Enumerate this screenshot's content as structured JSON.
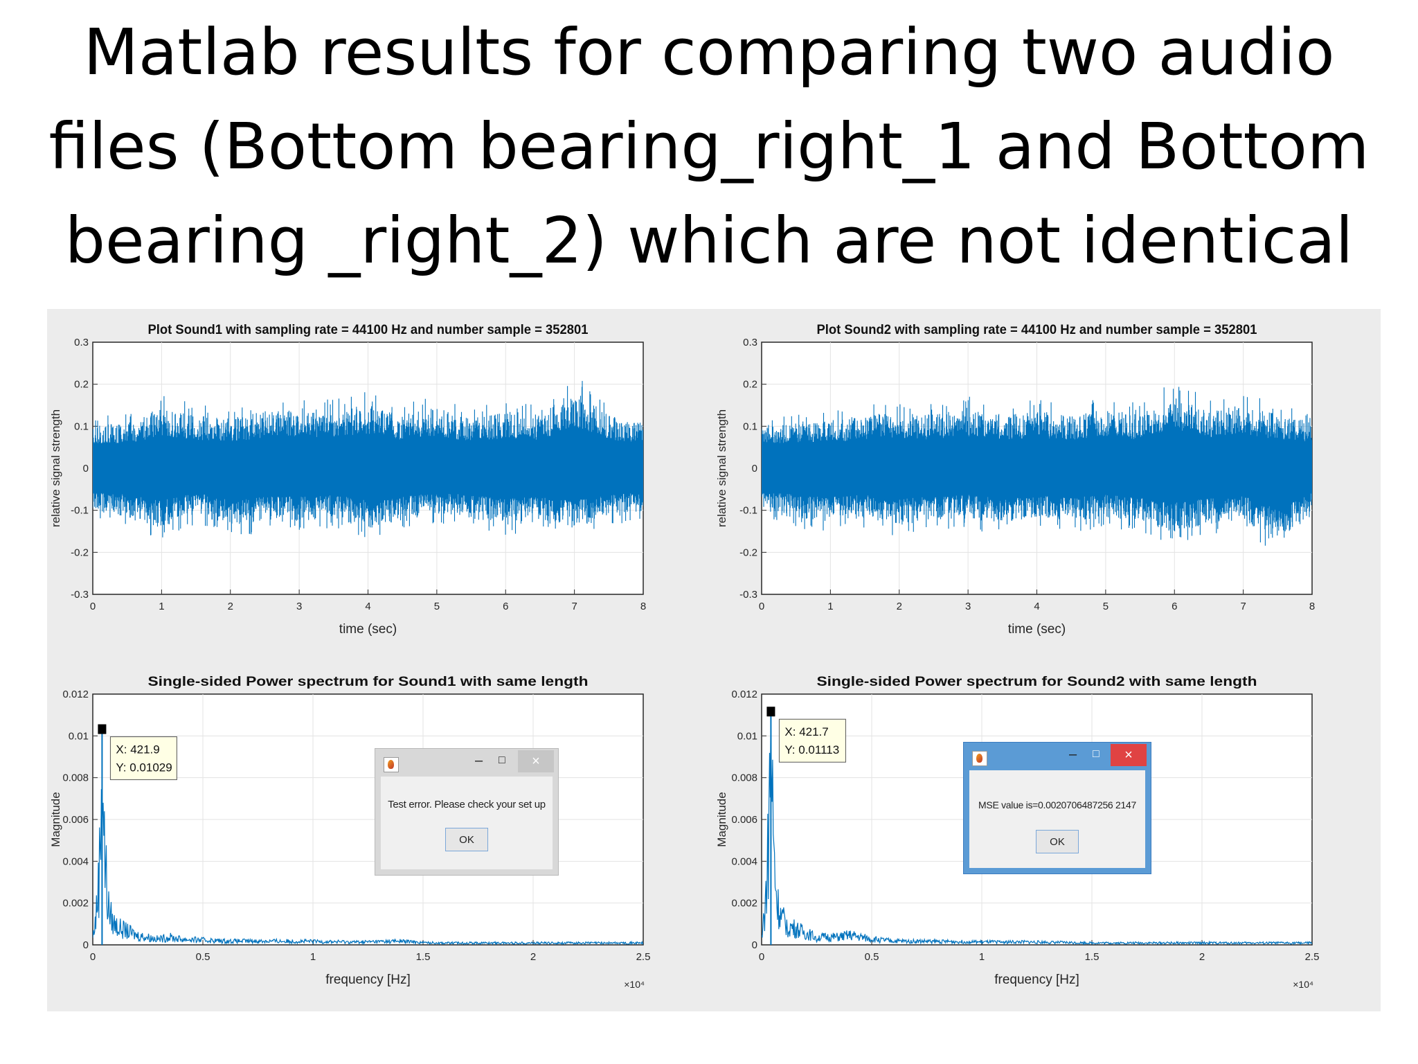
{
  "slide": {
    "title_lines": [
      "Matlab results for comparing two audio",
      "files (Bottom bearing_right_1 and Bottom",
      "bearing _right_2) which are not identical"
    ]
  },
  "chart_data": [
    {
      "id": "time1",
      "type": "line",
      "title": "Plot Sound1 with sampling rate = 44100 Hz and number sample = 352801",
      "xlabel": "time (sec)",
      "ylabel": "relative signal strength",
      "xlim": [
        0,
        8
      ],
      "ylim": [
        -0.3,
        0.3
      ],
      "xticks": [
        "0",
        "1",
        "2",
        "3",
        "4",
        "5",
        "6",
        "7",
        "8"
      ],
      "yticks": [
        "0.3",
        "0.2",
        "0.1",
        "0",
        "-0.1",
        "-0.2",
        "-0.3"
      ],
      "grid": true,
      "color": "#0072bd",
      "envelope_x": [
        0,
        0.5,
        1,
        1.5,
        2,
        2.5,
        3,
        3.5,
        4,
        4.5,
        5,
        5.5,
        6,
        6.5,
        7,
        7.5,
        8
      ],
      "envelope_y": [
        0.12,
        0.13,
        0.17,
        0.15,
        0.14,
        0.16,
        0.17,
        0.16,
        0.18,
        0.15,
        0.17,
        0.14,
        0.16,
        0.15,
        0.22,
        0.15,
        0.13
      ],
      "envelope_neg": [
        -0.12,
        -0.14,
        -0.17,
        -0.13,
        -0.16,
        -0.15,
        -0.15,
        -0.14,
        -0.17,
        -0.15,
        -0.13,
        -0.14,
        -0.16,
        -0.15,
        -0.17,
        -0.14,
        -0.12
      ]
    },
    {
      "id": "time2",
      "type": "line",
      "title": "Plot Sound2 with sampling rate = 44100 Hz and number sample = 352801",
      "xlabel": "time (sec)",
      "ylabel": "relative signal strength",
      "xlim": [
        0,
        8
      ],
      "ylim": [
        -0.3,
        0.3
      ],
      "xticks": [
        "0",
        "1",
        "2",
        "3",
        "4",
        "5",
        "6",
        "7",
        "8"
      ],
      "yticks": [
        "0.3",
        "0.2",
        "0.1",
        "0",
        "-0.1",
        "-0.2",
        "-0.3"
      ],
      "grid": true,
      "color": "#0072bd",
      "envelope_x": [
        0,
        0.5,
        1,
        1.5,
        2,
        2.5,
        3,
        3.5,
        4,
        4.5,
        5,
        5.5,
        6,
        6.5,
        7,
        7.5,
        8
      ],
      "envelope_y": [
        0.12,
        0.13,
        0.14,
        0.15,
        0.16,
        0.15,
        0.17,
        0.15,
        0.16,
        0.15,
        0.17,
        0.15,
        0.21,
        0.16,
        0.18,
        0.15,
        0.13
      ],
      "envelope_neg": [
        -0.12,
        -0.14,
        -0.15,
        -0.14,
        -0.16,
        -0.15,
        -0.14,
        -0.16,
        -0.14,
        -0.15,
        -0.14,
        -0.15,
        -0.18,
        -0.16,
        -0.14,
        -0.22,
        -0.13
      ]
    },
    {
      "id": "spec1",
      "type": "line",
      "title": "Single-sided Power spectrum for Sound1 with same length",
      "xlabel": "frequency [Hz]",
      "ylabel": "Magnitude",
      "xlim": [
        0,
        25000
      ],
      "ylim": [
        0,
        0.012
      ],
      "xticks": [
        "0",
        "0.5",
        "1",
        "1.5",
        "2",
        "2.5"
      ],
      "yticks": [
        "0.012",
        "0.01",
        "0.008",
        "0.006",
        "0.004",
        "0.002",
        "0"
      ],
      "x_exponent": "×10⁴",
      "grid": true,
      "color": "#0072bd",
      "x": [
        0,
        150,
        300,
        421.9,
        550,
        700,
        900,
        1200,
        1600,
        2000,
        2500,
        3000,
        3500,
        4000,
        5000,
        6000,
        8000,
        10000,
        12000,
        14000,
        15000,
        16000,
        18000,
        20000,
        22000,
        25000
      ],
      "y": [
        0.0004,
        0.0015,
        0.004,
        0.01029,
        0.0045,
        0.002,
        0.0012,
        0.0009,
        0.0007,
        0.0005,
        0.0004,
        0.0003,
        0.0004,
        0.0003,
        0.00025,
        0.0002,
        0.0002,
        0.00018,
        0.00015,
        0.0002,
        0.00012,
        0.0001,
        0.0001,
        0.0001,
        0.0001,
        0.0001
      ],
      "datatip": {
        "x_label": "X: 421.9",
        "y_label": "Y: 0.01029",
        "x": 421.9,
        "y": 0.01029
      }
    },
    {
      "id": "spec2",
      "type": "line",
      "title": "Single-sided Power spectrum for Sound2 with same length",
      "xlabel": "frequency [Hz]",
      "ylabel": "Magnitude",
      "xlim": [
        0,
        25000
      ],
      "ylim": [
        0,
        0.012
      ],
      "xticks": [
        "0",
        "0.5",
        "1",
        "1.5",
        "2",
        "2.5"
      ],
      "yticks": [
        "0.012",
        "0.01",
        "0.008",
        "0.006",
        "0.004",
        "0.002",
        "0"
      ],
      "x_exponent": "×10⁴",
      "grid": true,
      "color": "#0072bd",
      "x": [
        0,
        150,
        300,
        421.7,
        550,
        700,
        900,
        1200,
        1600,
        2000,
        2500,
        3000,
        3500,
        4000,
        5000,
        6000,
        8000,
        10000,
        12000,
        14000,
        15000,
        16000,
        18000,
        20000,
        22000,
        25000
      ],
      "y": [
        0.0005,
        0.0018,
        0.005,
        0.01113,
        0.0048,
        0.0022,
        0.0014,
        0.001,
        0.0008,
        0.0006,
        0.0004,
        0.0004,
        0.0004,
        0.0005,
        0.0003,
        0.0002,
        0.00018,
        0.00015,
        0.00015,
        0.00012,
        0.0001,
        0.0001,
        0.0001,
        0.0001,
        0.0001,
        0.0001
      ],
      "datatip": {
        "x_label": "X: 421.7",
        "y_label": "Y: 0.01113",
        "x": 421.7,
        "y": 0.01113
      }
    }
  ],
  "dialogs": {
    "error": {
      "message": "Test error. Please check your set up",
      "ok_label": "OK",
      "minimize": "–",
      "maximize": "□",
      "close": "×"
    },
    "mse": {
      "message": "MSE value is=0.0020706487256 2147",
      "ok_label": "OK",
      "minimize": "–",
      "maximize": "□",
      "close": "×"
    }
  }
}
